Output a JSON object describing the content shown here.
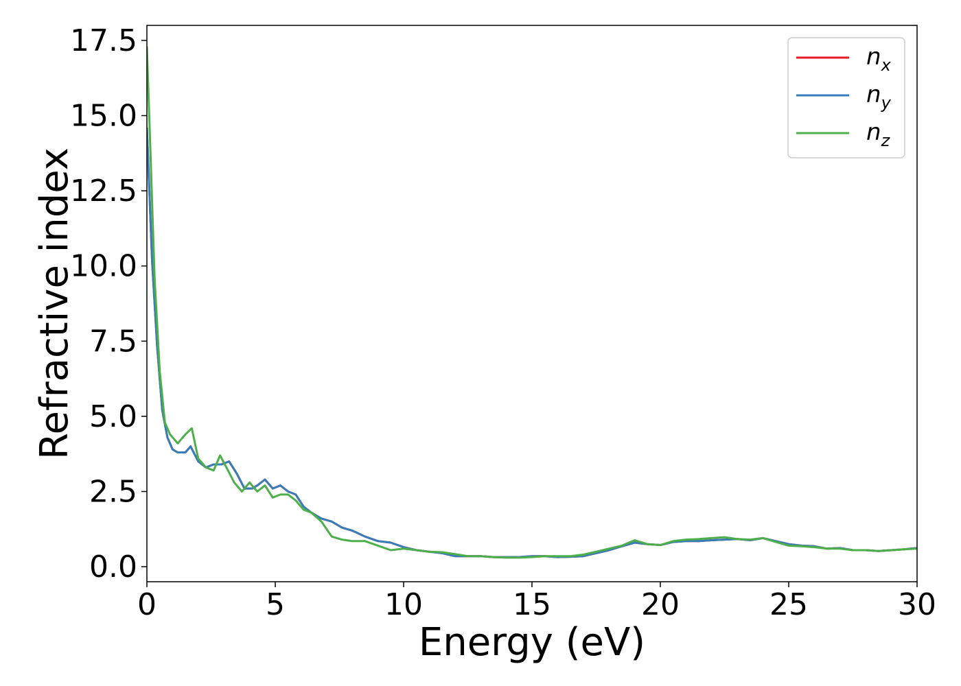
{
  "chart_data": {
    "type": "line",
    "title": "",
    "xlabel": "Energy (eV)",
    "ylabel": "Refractive index",
    "xlim": [
      0,
      30
    ],
    "ylim": [
      -0.5,
      18.0
    ],
    "xticks": [
      0,
      5,
      10,
      15,
      20,
      25,
      30
    ],
    "xtick_labels": [
      "0",
      "5",
      "10",
      "15",
      "20",
      "25",
      "30"
    ],
    "yticks": [
      0.0,
      2.5,
      5.0,
      7.5,
      10.0,
      12.5,
      15.0,
      17.5
    ],
    "ytick_labels": [
      "0.0",
      "2.5",
      "5.0",
      "7.5",
      "10.0",
      "12.5",
      "15.0",
      "17.5"
    ],
    "grid": false,
    "legend_position": "top-right",
    "series": [
      {
        "name": "n_x",
        "legend_base": "n",
        "legend_sub": "x",
        "color": "#e41a1c",
        "x": [
          0,
          0.2,
          0.4,
          0.6,
          0.8,
          1.0,
          1.2,
          1.5,
          1.7,
          2.0,
          2.3,
          2.6,
          2.9,
          3.2,
          3.5,
          3.8,
          4.1,
          4.3,
          4.6,
          4.9,
          5.2,
          5.5,
          5.8,
          6.1,
          6.4,
          6.8,
          7.2,
          7.6,
          8.0,
          8.5,
          9.0,
          9.5,
          10.0,
          10.5,
          11.0,
          11.5,
          12.0,
          12.5,
          13.0,
          13.5,
          14.0,
          14.5,
          15.0,
          15.5,
          16.0,
          16.5,
          17.0,
          17.5,
          18.0,
          18.5,
          19.0,
          19.5,
          20.0,
          20.5,
          21.0,
          21.5,
          22.0,
          22.5,
          23.0,
          23.5,
          24.0,
          24.5,
          25.0,
          25.5,
          26.0,
          26.5,
          27.0,
          27.5,
          28.0,
          28.5,
          29.0,
          29.5,
          30.0
        ],
        "y": [
          14.6,
          10.2,
          7.3,
          5.2,
          4.3,
          3.9,
          3.8,
          3.8,
          4.0,
          3.5,
          3.3,
          3.4,
          3.4,
          3.5,
          3.1,
          2.6,
          2.6,
          2.7,
          2.9,
          2.6,
          2.7,
          2.5,
          2.4,
          2.0,
          1.8,
          1.6,
          1.5,
          1.3,
          1.2,
          1.0,
          0.85,
          0.8,
          0.65,
          0.55,
          0.5,
          0.45,
          0.35,
          0.35,
          0.35,
          0.32,
          0.32,
          0.32,
          0.35,
          0.35,
          0.32,
          0.33,
          0.35,
          0.45,
          0.55,
          0.68,
          0.8,
          0.75,
          0.72,
          0.82,
          0.85,
          0.85,
          0.88,
          0.9,
          0.92,
          0.88,
          0.95,
          0.85,
          0.75,
          0.7,
          0.68,
          0.6,
          0.62,
          0.55,
          0.55,
          0.52,
          0.55,
          0.58,
          0.62
        ]
      },
      {
        "name": "n_y",
        "legend_base": "n",
        "legend_sub": "y",
        "color": "#377eb8",
        "x": [
          0,
          0.2,
          0.4,
          0.6,
          0.8,
          1.0,
          1.2,
          1.5,
          1.7,
          2.0,
          2.3,
          2.6,
          2.9,
          3.2,
          3.5,
          3.8,
          4.1,
          4.3,
          4.6,
          4.9,
          5.2,
          5.5,
          5.8,
          6.1,
          6.4,
          6.8,
          7.2,
          7.6,
          8.0,
          8.5,
          9.0,
          9.5,
          10.0,
          10.5,
          11.0,
          11.5,
          12.0,
          12.5,
          13.0,
          13.5,
          14.0,
          14.5,
          15.0,
          15.5,
          16.0,
          16.5,
          17.0,
          17.5,
          18.0,
          18.5,
          19.0,
          19.5,
          20.0,
          20.5,
          21.0,
          21.5,
          22.0,
          22.5,
          23.0,
          23.5,
          24.0,
          24.5,
          25.0,
          25.5,
          26.0,
          26.5,
          27.0,
          27.5,
          28.0,
          28.5,
          29.0,
          29.5,
          30.0
        ],
        "y": [
          14.6,
          10.2,
          7.3,
          5.2,
          4.3,
          3.9,
          3.8,
          3.8,
          4.0,
          3.5,
          3.3,
          3.4,
          3.4,
          3.5,
          3.1,
          2.6,
          2.6,
          2.7,
          2.9,
          2.6,
          2.7,
          2.5,
          2.4,
          2.0,
          1.8,
          1.6,
          1.5,
          1.3,
          1.2,
          1.0,
          0.85,
          0.8,
          0.65,
          0.55,
          0.5,
          0.45,
          0.35,
          0.35,
          0.35,
          0.32,
          0.32,
          0.32,
          0.35,
          0.35,
          0.32,
          0.33,
          0.35,
          0.45,
          0.55,
          0.68,
          0.8,
          0.75,
          0.72,
          0.82,
          0.85,
          0.85,
          0.88,
          0.9,
          0.92,
          0.88,
          0.95,
          0.85,
          0.75,
          0.7,
          0.68,
          0.6,
          0.62,
          0.55,
          0.55,
          0.52,
          0.55,
          0.58,
          0.62
        ]
      },
      {
        "name": "n_z",
        "legend_base": "n",
        "legend_sub": "z",
        "color": "#4daf4a",
        "x": [
          0,
          0.15,
          0.3,
          0.5,
          0.7,
          0.9,
          1.2,
          1.5,
          1.75,
          2.0,
          2.3,
          2.6,
          2.85,
          3.1,
          3.4,
          3.7,
          4.0,
          4.3,
          4.6,
          4.9,
          5.2,
          5.5,
          5.8,
          6.1,
          6.4,
          6.8,
          7.2,
          7.6,
          8.0,
          8.5,
          9.0,
          9.5,
          10.0,
          10.5,
          11.0,
          11.5,
          12.0,
          12.5,
          13.0,
          13.5,
          14.0,
          14.5,
          15.0,
          15.5,
          16.0,
          16.5,
          17.0,
          17.5,
          18.0,
          18.5,
          19.0,
          19.5,
          20.0,
          20.5,
          21.0,
          21.5,
          22.0,
          22.5,
          23.0,
          23.5,
          24.0,
          24.5,
          25.0,
          25.5,
          26.0,
          26.5,
          27.0,
          27.5,
          28.0,
          28.5,
          29.0,
          29.5,
          30.0
        ],
        "y": [
          17.3,
          13.5,
          9.6,
          6.5,
          4.8,
          4.4,
          4.1,
          4.4,
          4.6,
          3.6,
          3.3,
          3.2,
          3.7,
          3.3,
          2.8,
          2.5,
          2.8,
          2.5,
          2.7,
          2.3,
          2.4,
          2.4,
          2.2,
          1.9,
          1.8,
          1.5,
          1.0,
          0.9,
          0.85,
          0.85,
          0.7,
          0.55,
          0.6,
          0.55,
          0.5,
          0.48,
          0.42,
          0.35,
          0.35,
          0.32,
          0.3,
          0.3,
          0.32,
          0.35,
          0.35,
          0.35,
          0.4,
          0.5,
          0.6,
          0.7,
          0.88,
          0.75,
          0.72,
          0.85,
          0.9,
          0.92,
          0.95,
          0.98,
          0.92,
          0.9,
          0.95,
          0.82,
          0.7,
          0.68,
          0.65,
          0.6,
          0.6,
          0.55,
          0.55,
          0.52,
          0.55,
          0.58,
          0.6
        ]
      }
    ]
  }
}
